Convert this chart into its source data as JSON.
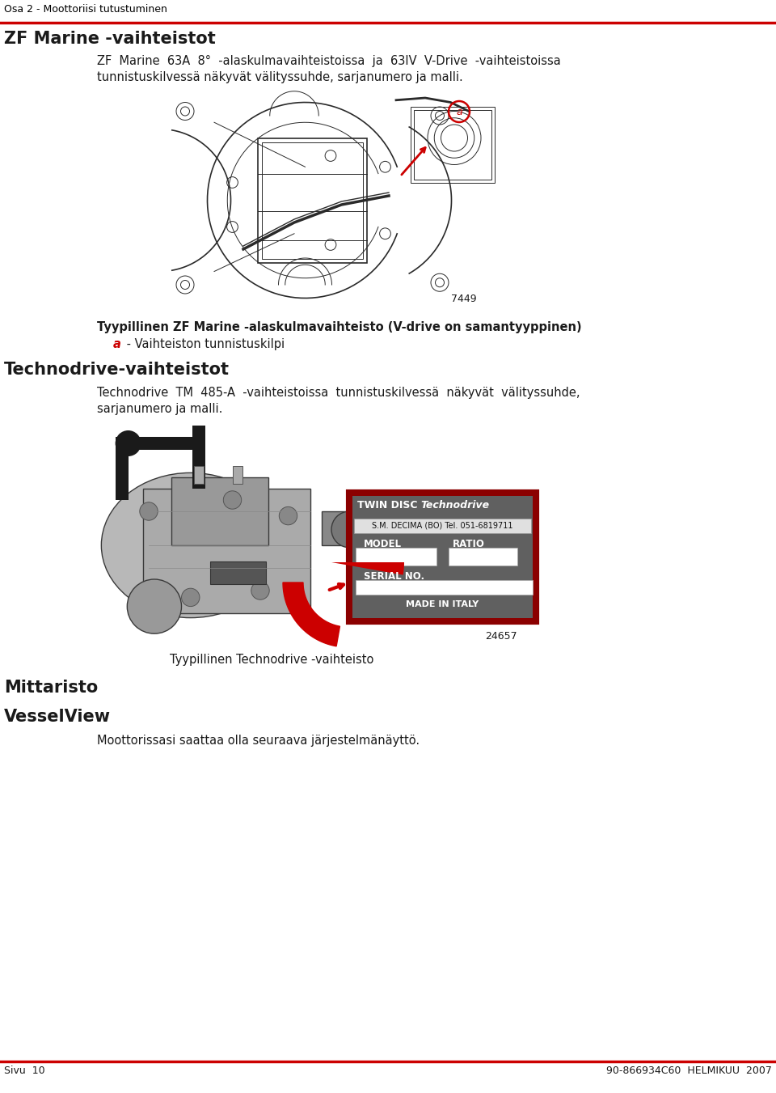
{
  "page_width": 9.6,
  "page_height": 13.51,
  "bg_color": "#ffffff",
  "header_line_color": "#cc0000",
  "header_text": "Osa 2 - Moottoriisi tutustuminen",
  "header_text_color": "#000000",
  "header_fontsize": 9,
  "section1_title": "ZF Marine -vaihteistot",
  "section1_title_fontsize": 15,
  "section1_body_line1": "ZF  Marine  63A  8°  -alaskulmavaihteistoissa  ja  63IV  V-Drive  -vaihteistoissa",
  "section1_body_line2": "tunnistuskilvessä näkyvät välityssuhde, sarjanumero ja malli.",
  "section1_body_fontsize": 10.5,
  "fig1_caption_main": "Tyypillinen ZF Marine -alaskulmavaihteisto (V-drive on samantyyppinen)",
  "fig1_caption_sub_a": "a",
  "fig1_caption_sub_rest": " - Vaihteiston tunnistuskilpi",
  "fig1_number": "7449",
  "fig1_caption_fontsize": 10.5,
  "section2_title": "Technodrive-vaihteistot",
  "section2_title_fontsize": 15,
  "section2_body_line1": "Technodrive  TM  485-A  -vaihteistoissa  tunnistuskilvessä  näkyvät  välityssuhde,",
  "section2_body_line2": "sarjanumero ja malli.",
  "section2_body_fontsize": 10.5,
  "fig2_caption": "Tyypillinen Technodrive -vaihteisto",
  "fig2_number": "24657",
  "fig2_caption_fontsize": 10.5,
  "section3_title": "Mittaristo",
  "section3_title_fontsize": 15,
  "section4_title": "VesselView",
  "section4_title_fontsize": 15,
  "section4_body": "Moottorissasi saattaa olla seuraava järjestelmänäyttö.",
  "section4_body_fontsize": 10.5,
  "footer_line_color": "#cc0000",
  "footer_left": "Sivu  10",
  "footer_right": "90-866934C60  HELMIKUU  2007",
  "footer_fontsize": 9,
  "red_color": "#cc0000",
  "dark_red": "#8b0000",
  "dark_color": "#1a1a1a",
  "plate_bg": "#606060",
  "plate_border": "#8b0000",
  "plate_text": "#ffffff",
  "plate_box_bg": "#ffffff"
}
